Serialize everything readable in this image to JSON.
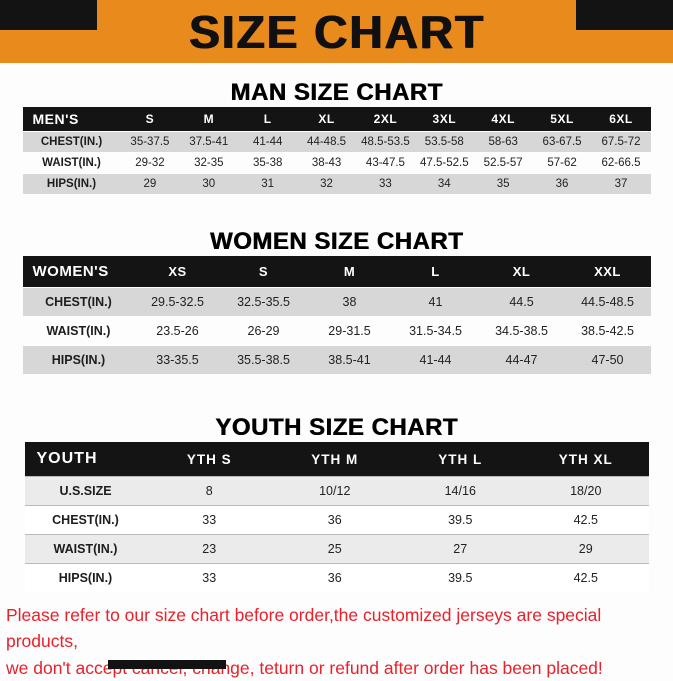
{
  "banner": {
    "title": "SIZE CHART"
  },
  "colors": {
    "banner_orange": "#e98a1d",
    "table_header_black": "#141414",
    "row_gray": "#d7d7d7",
    "note_red": "#e8212b"
  },
  "sections": [
    {
      "heading": "MAN SIZE CHART",
      "table": {
        "header": [
          "MEN'S",
          "S",
          "M",
          "L",
          "XL",
          "2XL",
          "3XL",
          "4XL",
          "5XL",
          "6XL"
        ],
        "rows": [
          [
            "CHEST(IN.)",
            "35-37.5",
            "37.5-41",
            "41-44",
            "44-48.5",
            "48.5-53.5",
            "53.5-58",
            "58-63",
            "63-67.5",
            "67.5-72"
          ],
          [
            "WAIST(IN.)",
            "29-32",
            "32-35",
            "35-38",
            "38-43",
            "43-47.5",
            "47.5-52.5",
            "52.5-57",
            "57-62",
            "62-66.5"
          ],
          [
            "HIPS(IN.)",
            "29",
            "30",
            "31",
            "32",
            "33",
            "34",
            "35",
            "36",
            "37"
          ]
        ]
      }
    },
    {
      "heading": "WOMEN SIZE CHART",
      "table": {
        "header": [
          "WOMEN'S",
          "XS",
          "S",
          "M",
          "L",
          "XL",
          "XXL"
        ],
        "rows": [
          [
            "CHEST(IN.)",
            "29.5-32.5",
            "32.5-35.5",
            "38",
            "41",
            "44.5",
            "44.5-48.5"
          ],
          [
            "WAIST(IN.)",
            "23.5-26",
            "26-29",
            "29-31.5",
            "31.5-34.5",
            "34.5-38.5",
            "38.5-42.5"
          ],
          [
            "HIPS(IN.)",
            "33-35.5",
            "35.5-38.5",
            "38.5-41",
            "41-44",
            "44-47",
            "47-50"
          ]
        ]
      }
    },
    {
      "heading": "YOUTH SIZE CHART",
      "table": {
        "header": [
          "YOUTH",
          "YTH S",
          "YTH M",
          "YTH L",
          "YTH XL"
        ],
        "rows": [
          [
            "U.S.SIZE",
            "8",
            "10/12",
            "14/16",
            "18/20"
          ],
          [
            "CHEST(IN.)",
            "33",
            "36",
            "39.5",
            "42.5"
          ],
          [
            "WAIST(IN.)",
            "23",
            "25",
            "27",
            "29"
          ],
          [
            "HIPS(IN.)",
            "33",
            "36",
            "39.5",
            "42.5"
          ]
        ]
      }
    }
  ],
  "footer": {
    "line1": "Please refer to our size chart before order,the customized jerseys are special products,",
    "line2": "we don't accept cancel, change, teturn or refund after order has been placed!"
  }
}
